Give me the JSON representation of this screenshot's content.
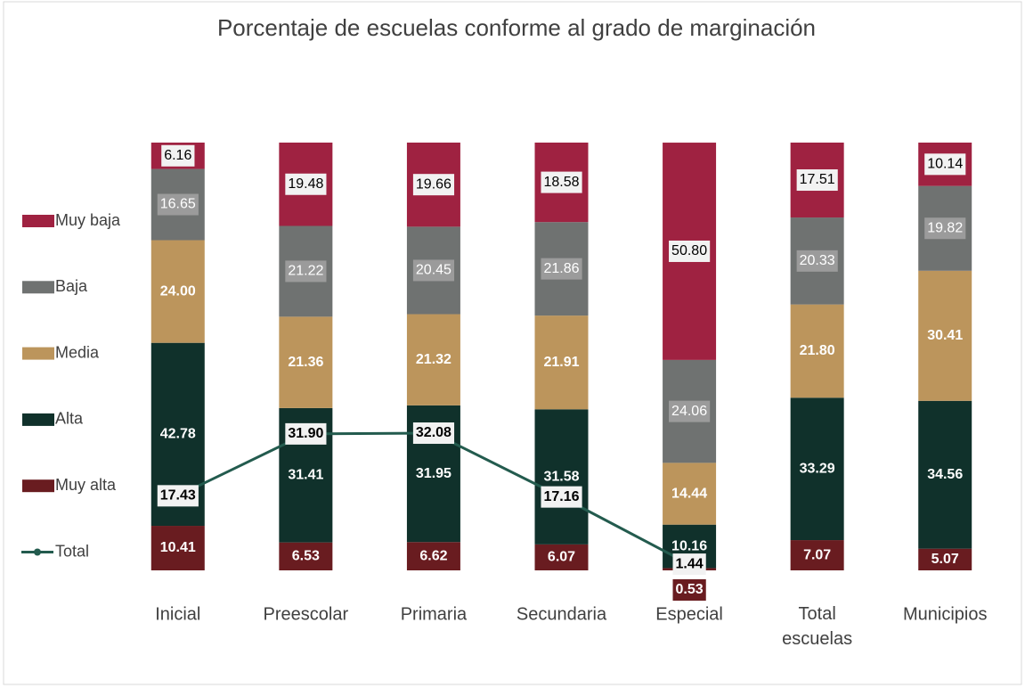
{
  "chart_data": {
    "type": "bar",
    "stacked": true,
    "title": "Porcentaje de escuelas conforme al grado de marginación",
    "categories": [
      "Inicial",
      "Preescolar",
      "Primaria",
      "Secundaria",
      "Especial",
      "Total escuelas",
      "Municipios"
    ],
    "ylim": [
      0,
      100
    ],
    "legend": "left",
    "series": [
      {
        "name": "Muy alta",
        "color": "#691c20",
        "values": [
          10.41,
          6.53,
          6.62,
          6.07,
          0.53,
          7.07,
          5.07
        ],
        "value_labels": [
          "10.41",
          "6.53",
          "6.62",
          "6.07",
          "0.53",
          "7.07",
          "5.07"
        ]
      },
      {
        "name": "Alta",
        "color": "#10312b",
        "values": [
          42.78,
          31.41,
          31.95,
          31.58,
          10.16,
          33.29,
          34.56
        ],
        "value_labels": [
          "42.78",
          "31.41",
          "31.95",
          "31.58",
          "10.16",
          "33.29",
          "34.56"
        ]
      },
      {
        "name": "Media",
        "color": "#bc955c",
        "values": [
          24.0,
          21.36,
          21.32,
          21.91,
          14.44,
          21.8,
          30.41
        ],
        "value_labels": [
          "24.00",
          "21.36",
          "21.32",
          "21.91",
          "14.44",
          "21.80",
          "30.41"
        ]
      },
      {
        "name": "Baja",
        "color": "#6f7271",
        "values": [
          16.65,
          21.22,
          20.45,
          21.86,
          24.06,
          20.33,
          19.82
        ],
        "value_labels": [
          "16.65",
          "21.22",
          "20.45",
          "21.86",
          "24.06",
          "20.33",
          "19.82"
        ]
      },
      {
        "name": "Muy baja",
        "color": "#9f2241",
        "values": [
          6.16,
          19.48,
          19.66,
          18.58,
          50.8,
          17.51,
          10.14
        ],
        "value_labels": [
          "6.16",
          "19.48",
          "19.66",
          "18.58",
          "50.80",
          "17.51",
          "10.14"
        ]
      },
      {
        "name": "Total",
        "type": "line",
        "color": "#235b4e",
        "values": [
          17.43,
          31.9,
          32.08,
          17.16,
          1.44,
          null,
          null
        ],
        "value_labels": [
          "17.43",
          "31.90",
          "32.08",
          "17.16",
          "1.44",
          null,
          null
        ]
      }
    ]
  }
}
